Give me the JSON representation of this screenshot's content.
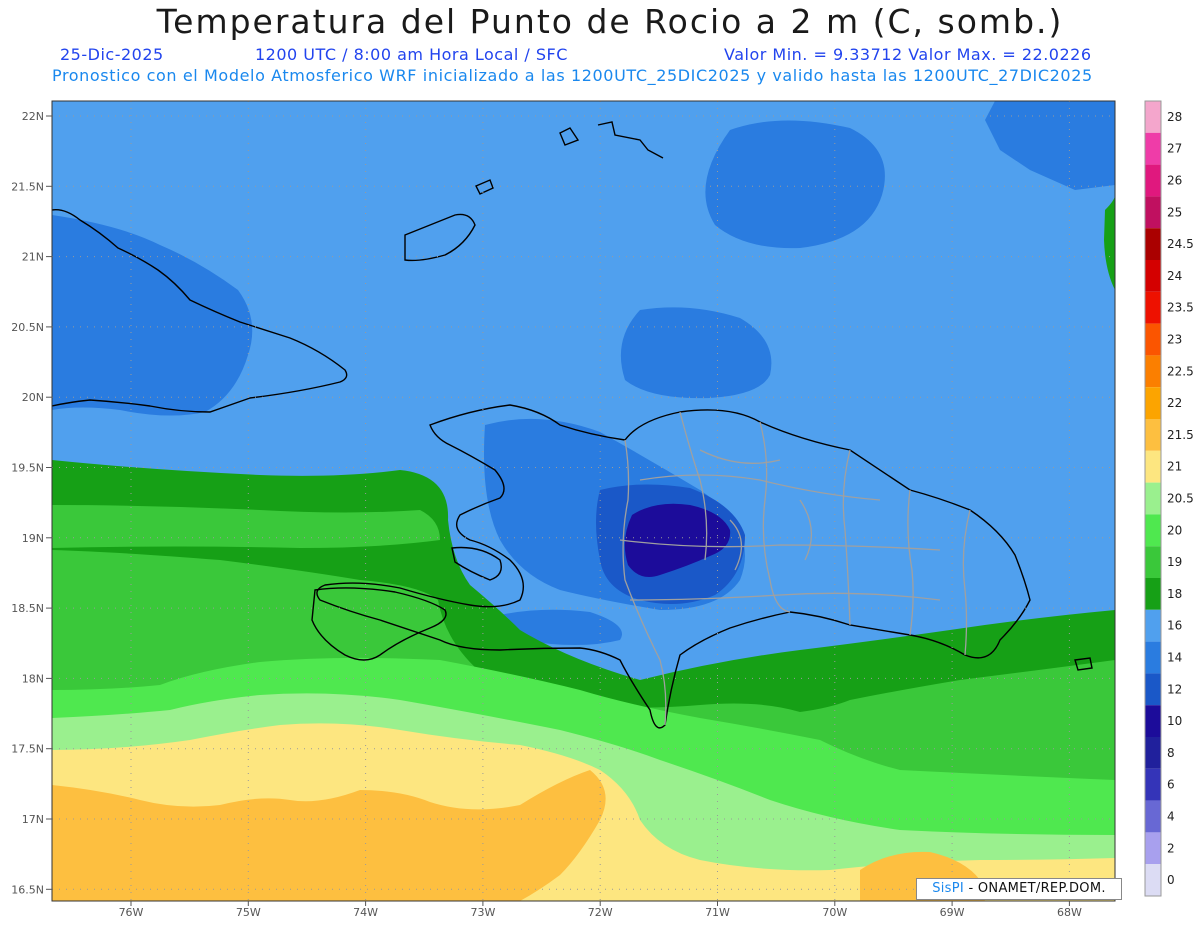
{
  "title": "Temperatura del Punto de Rocio a 2 m (C, somb.)",
  "header": {
    "date": "25-Dic-2025",
    "time": "1200 UTC / 8:00 am Hora Local / SFC",
    "minmax": "Valor Min. = 9.33712  Valor Max. = 22.0226",
    "forecast": "Pronostico con el Modelo Atmosferico WRF inicializado a las 1200UTC_25DIC2025 y valido hasta las  1200UTC_27DIC2025"
  },
  "axes": {
    "lat_labels": [
      "22N",
      "21.5N",
      "21N",
      "20.5N",
      "20N",
      "19.5N",
      "19N",
      "18.5N",
      "18N",
      "17.5N",
      "17N",
      "16.5N"
    ],
    "lon_labels": [
      "76W",
      "75W",
      "74W",
      "73W",
      "72W",
      "71W",
      "70W",
      "69W",
      "68W"
    ]
  },
  "legend": {
    "levels": [
      {
        "label": "28",
        "color": "#f4a6cc"
      },
      {
        "label": "27",
        "color": "#ef3ca8"
      },
      {
        "label": "26",
        "color": "#e0187e"
      },
      {
        "label": "25",
        "color": "#c01060"
      },
      {
        "label": "24.5",
        "color": "#aa0000"
      },
      {
        "label": "24",
        "color": "#d40000"
      },
      {
        "label": "23.5",
        "color": "#ee1100"
      },
      {
        "label": "23",
        "color": "#fb5500"
      },
      {
        "label": "22.5",
        "color": "#fb7f00"
      },
      {
        "label": "22",
        "color": "#fca400"
      },
      {
        "label": "21.5",
        "color": "#fdbf40"
      },
      {
        "label": "21",
        "color": "#fde680"
      },
      {
        "label": "20.5",
        "color": "#9af08e"
      },
      {
        "label": "20",
        "color": "#4fe84f"
      },
      {
        "label": "19",
        "color": "#3ac83a"
      },
      {
        "label": "18",
        "color": "#16a016"
      },
      {
        "label": "16",
        "color": "#50a0ee"
      },
      {
        "label": "14",
        "color": "#2a7ce0"
      },
      {
        "label": "12",
        "color": "#1a58c8"
      },
      {
        "label": "10",
        "color": "#1c0c9a"
      },
      {
        "label": "8",
        "color": "#20209c"
      },
      {
        "label": "6",
        "color": "#3434b8"
      },
      {
        "label": "4",
        "color": "#6868d4"
      },
      {
        "label": "2",
        "color": "#a8a0ee"
      },
      {
        "label": "0",
        "color": "#dcdcf4"
      }
    ]
  },
  "credit": {
    "brand": "SisPI",
    "text": "- ONAMET/REP.DOM."
  }
}
